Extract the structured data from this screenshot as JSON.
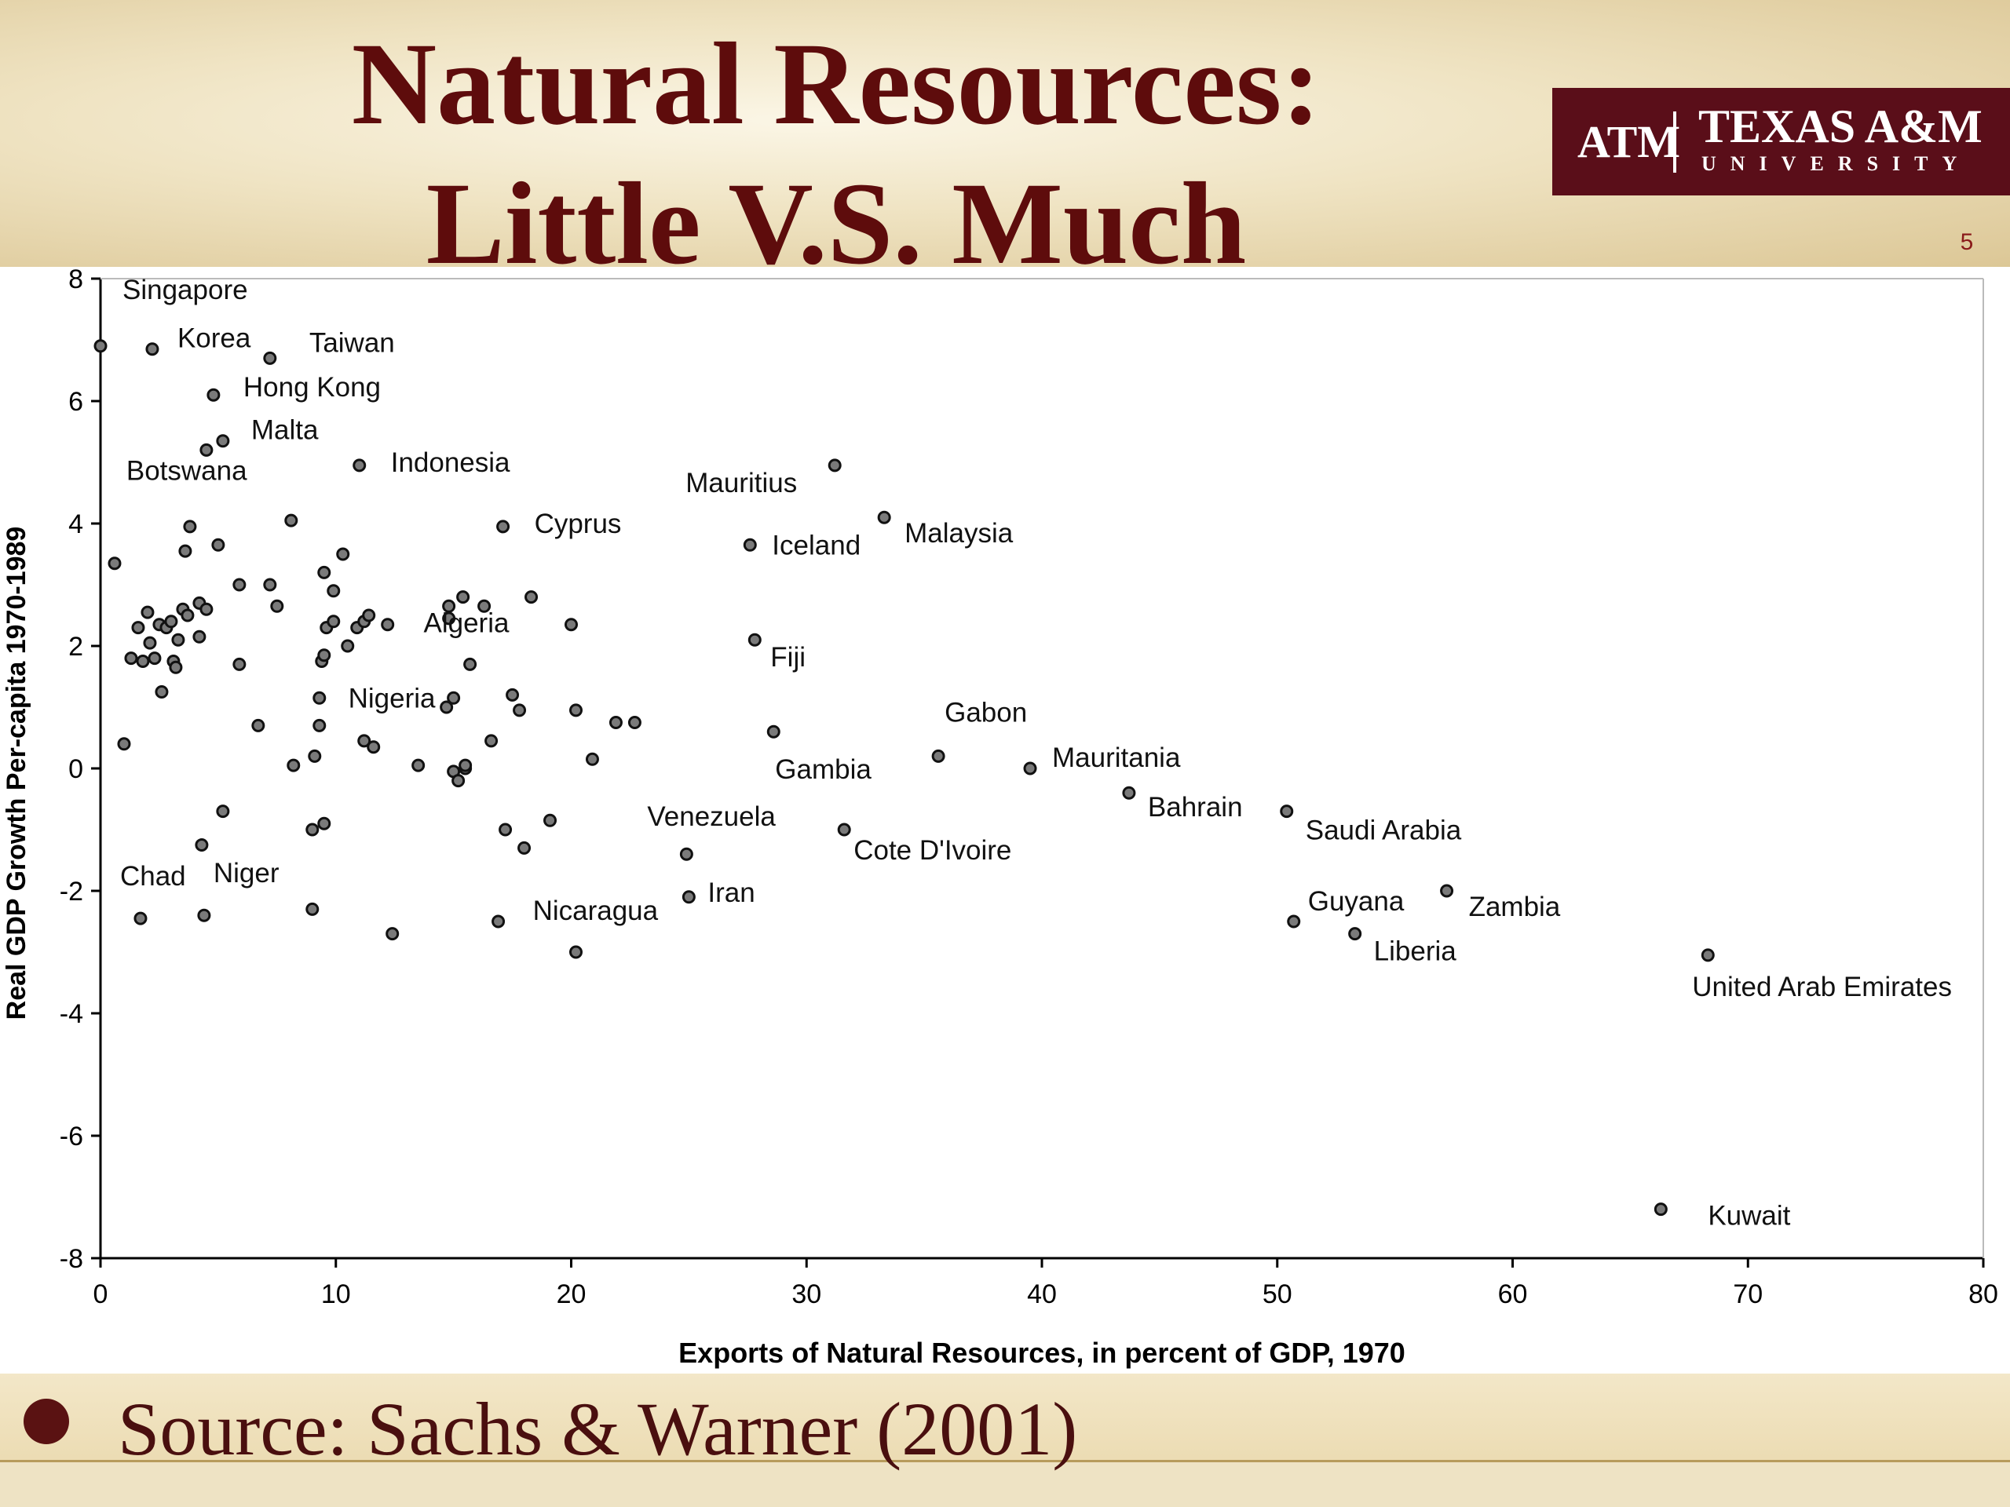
{
  "slide": {
    "title_line1": "Natural Resources:",
    "title_line2": "Little V.S. Much",
    "slide_number": "5",
    "logo": {
      "mark": "ATM",
      "name": "TEXAS A&M",
      "sub": "UNIVERSITY",
      "color": "#5a0e19"
    },
    "footer": {
      "bullet_icon": "filled-circle",
      "source": "Source: Sachs & Warner (2001)"
    },
    "colors": {
      "title": "#5e0c0c",
      "point": "#7a7a7a",
      "axis": "#000000"
    }
  },
  "chart_data": {
    "type": "scatter",
    "xlabel": "Exports of Natural Resources, in percent of GDP, 1970",
    "ylabel": "Real GDP Growth Per-capita 1970-1989",
    "xlim": [
      0,
      80
    ],
    "ylim": [
      -8,
      8
    ],
    "xticks": [
      0,
      10,
      20,
      30,
      40,
      50,
      60,
      70,
      80
    ],
    "yticks": [
      -8,
      -6,
      -4,
      -2,
      0,
      2,
      4,
      6,
      8
    ],
    "grid": false,
    "labeled_points": [
      {
        "label": "Singapore",
        "x": 0.0,
        "y": 6.9
      },
      {
        "label": "Korea",
        "x": 2.2,
        "y": 6.85
      },
      {
        "label": "Taiwan",
        "x": 7.2,
        "y": 6.7
      },
      {
        "label": "Hong Kong",
        "x": 4.8,
        "y": 6.1
      },
      {
        "label": "Malta",
        "x": 5.2,
        "y": 5.35
      },
      {
        "label": "Botswana",
        "x": 4.5,
        "y": 5.2
      },
      {
        "label": "Indonesia",
        "x": 11.0,
        "y": 4.95
      },
      {
        "label": "Mauritius",
        "x": 31.2,
        "y": 4.95
      },
      {
        "label": "Cyprus",
        "x": 17.1,
        "y": 3.95
      },
      {
        "label": "Iceland",
        "x": 27.6,
        "y": 3.65
      },
      {
        "label": "Malaysia",
        "x": 33.3,
        "y": 4.1
      },
      {
        "label": "Algeria",
        "x": 20.0,
        "y": 2.35
      },
      {
        "label": "Fiji",
        "x": 27.8,
        "y": 2.1
      },
      {
        "label": "Nigeria",
        "x": 15.0,
        "y": 1.15
      },
      {
        "label": "Gabon",
        "x": 35.6,
        "y": 0.2
      },
      {
        "label": "Gambia",
        "x": 28.6,
        "y": 0.6
      },
      {
        "label": "Mauritania",
        "x": 39.5,
        "y": 0.0
      },
      {
        "label": "Bahrain",
        "x": 43.7,
        "y": -0.4
      },
      {
        "label": "Saudi Arabia",
        "x": 50.4,
        "y": -0.7
      },
      {
        "label": "Venezuela",
        "x": 24.9,
        "y": -1.4
      },
      {
        "label": "Cote D'Ivoire",
        "x": 31.6,
        "y": -1.0
      },
      {
        "label": "Chad",
        "x": 1.7,
        "y": -2.45
      },
      {
        "label": "Niger",
        "x": 4.4,
        "y": -2.4
      },
      {
        "label": "Nicaragua",
        "x": 16.9,
        "y": -2.5
      },
      {
        "label": "Iran",
        "x": 25.0,
        "y": -2.1
      },
      {
        "label": "Guyana",
        "x": 50.7,
        "y": -2.5
      },
      {
        "label": "Zambia",
        "x": 57.2,
        "y": -2.0
      },
      {
        "label": "Liberia",
        "x": 53.3,
        "y": -2.7
      },
      {
        "label": "United Arab Emirates",
        "x": 68.3,
        "y": -3.05
      },
      {
        "label": "Kuwait",
        "x": 66.3,
        "y": -7.2
      }
    ],
    "other_points": [
      [
        0.6,
        3.35
      ],
      [
        1.0,
        0.4
      ],
      [
        1.3,
        1.8
      ],
      [
        1.6,
        2.3
      ],
      [
        1.8,
        1.75
      ],
      [
        2.0,
        2.55
      ],
      [
        2.1,
        2.05
      ],
      [
        2.3,
        1.8
      ],
      [
        2.5,
        2.35
      ],
      [
        2.6,
        1.25
      ],
      [
        2.8,
        2.3
      ],
      [
        3.0,
        2.4
      ],
      [
        3.1,
        1.75
      ],
      [
        3.2,
        1.65
      ],
      [
        3.3,
        2.1
      ],
      [
        3.5,
        2.6
      ],
      [
        3.6,
        3.55
      ],
      [
        3.7,
        2.5
      ],
      [
        3.8,
        3.95
      ],
      [
        4.2,
        2.7
      ],
      [
        4.2,
        2.15
      ],
      [
        4.5,
        2.6
      ],
      [
        4.3,
        -1.25
      ],
      [
        5.0,
        3.65
      ],
      [
        5.2,
        -0.7
      ],
      [
        5.9,
        3.0
      ],
      [
        5.9,
        1.7
      ],
      [
        6.7,
        0.7
      ],
      [
        7.2,
        3.0
      ],
      [
        7.5,
        2.65
      ],
      [
        8.1,
        4.05
      ],
      [
        8.2,
        0.05
      ],
      [
        9.0,
        -1.0
      ],
      [
        9.0,
        -2.3
      ],
      [
        9.1,
        0.2
      ],
      [
        9.3,
        0.7
      ],
      [
        9.3,
        1.15
      ],
      [
        9.4,
        1.75
      ],
      [
        9.5,
        1.85
      ],
      [
        9.5,
        3.2
      ],
      [
        9.5,
        -0.9
      ],
      [
        9.6,
        2.3
      ],
      [
        9.9,
        2.9
      ],
      [
        9.9,
        2.4
      ],
      [
        10.3,
        3.5
      ],
      [
        10.5,
        2.0
      ],
      [
        10.9,
        2.3
      ],
      [
        11.2,
        2.4
      ],
      [
        11.4,
        2.5
      ],
      [
        11.2,
        0.45
      ],
      [
        11.6,
        0.35
      ],
      [
        12.2,
        2.35
      ],
      [
        12.4,
        -2.7
      ],
      [
        13.5,
        0.05
      ],
      [
        14.7,
        1.0
      ],
      [
        14.8,
        2.65
      ],
      [
        14.8,
        2.45
      ],
      [
        15.0,
        -0.05
      ],
      [
        15.2,
        -0.2
      ],
      [
        15.4,
        2.8
      ],
      [
        15.5,
        0.0
      ],
      [
        15.5,
        0.05
      ],
      [
        15.7,
        1.7
      ],
      [
        16.3,
        2.65
      ],
      [
        16.6,
        0.45
      ],
      [
        17.2,
        -1.0
      ],
      [
        17.5,
        1.2
      ],
      [
        17.8,
        0.95
      ],
      [
        18.0,
        -1.3
      ],
      [
        18.3,
        2.8
      ],
      [
        19.1,
        -0.85
      ],
      [
        20.2,
        0.95
      ],
      [
        20.2,
        -3.0
      ],
      [
        20.9,
        0.15
      ],
      [
        21.9,
        0.75
      ],
      [
        22.7,
        0.75
      ]
    ]
  }
}
